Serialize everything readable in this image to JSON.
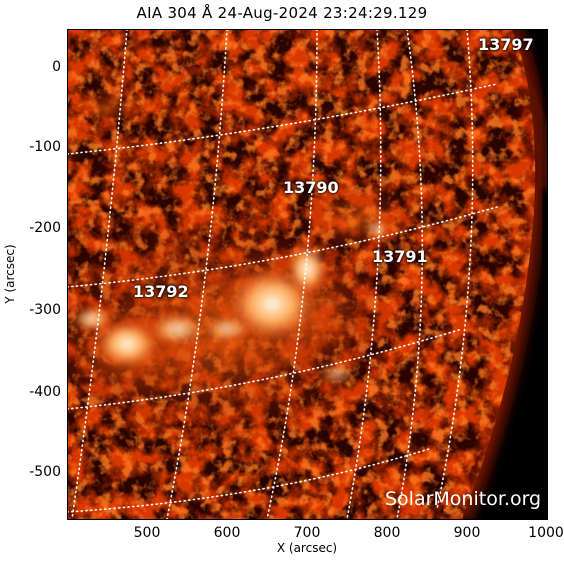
{
  "title": "AIA 304 Å 24-Aug-2024 23:24:29.129",
  "x_axis": {
    "label": "X (arcsec)",
    "ticks": [
      "500",
      "600",
      "700",
      "800",
      "900",
      "1000"
    ]
  },
  "y_axis": {
    "label": "Y (arcsec)",
    "ticks": [
      "0",
      "-100",
      "-200",
      "-300",
      "-400",
      "-500"
    ]
  },
  "active_regions": [
    {
      "label": "13797"
    },
    {
      "label": "13790"
    },
    {
      "label": "13791"
    },
    {
      "label": "13792"
    }
  ],
  "watermark": "SolarMonitor.org",
  "colors": {
    "background": "#000000",
    "plasma_dark": "#3a0500",
    "plasma_mid": "#c83200",
    "plasma_bright": "#ffa040",
    "core": "#fff4d8",
    "grid": "#ffffff"
  },
  "image_content": "solar disk limb in AIA 304 channel with bright active region emission and heliographic grid"
}
